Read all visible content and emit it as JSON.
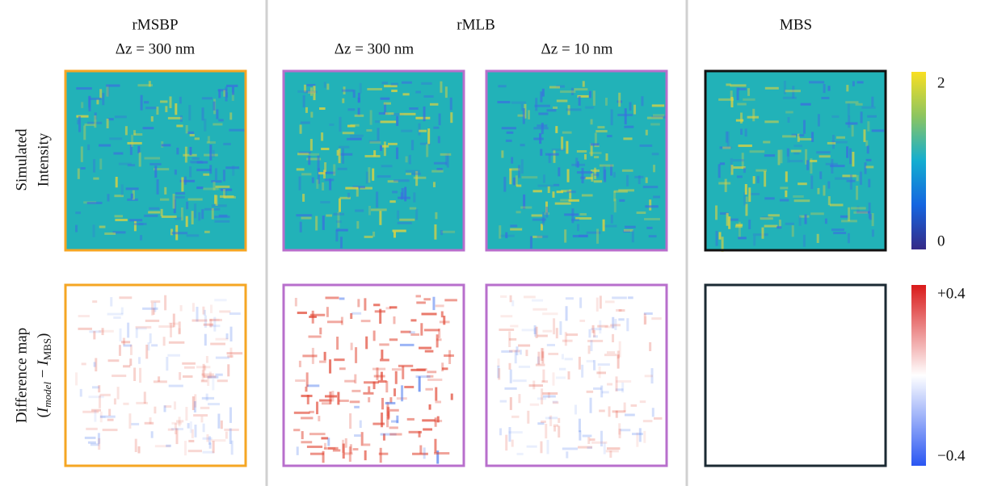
{
  "columns": [
    {
      "title": "rMSBP",
      "subtitles": [
        "Δz = 300 nm"
      ]
    },
    {
      "title": "rMLB",
      "subtitles": [
        "Δz = 300 nm",
        "Δz = 10 nm"
      ]
    },
    {
      "title": "MBS",
      "subtitles": []
    }
  ],
  "row_labels": [
    {
      "lines": [
        "Simulated",
        "Intensity"
      ]
    },
    {
      "line1": "Difference map",
      "parts": [
        "(",
        "I",
        "model",
        " − ",
        "I",
        "MBS",
        ")"
      ]
    }
  ],
  "colorbars": [
    {
      "top": "2",
      "bottom": "0"
    },
    {
      "top": "+0.4",
      "bottom": "−0.4"
    }
  ]
}
